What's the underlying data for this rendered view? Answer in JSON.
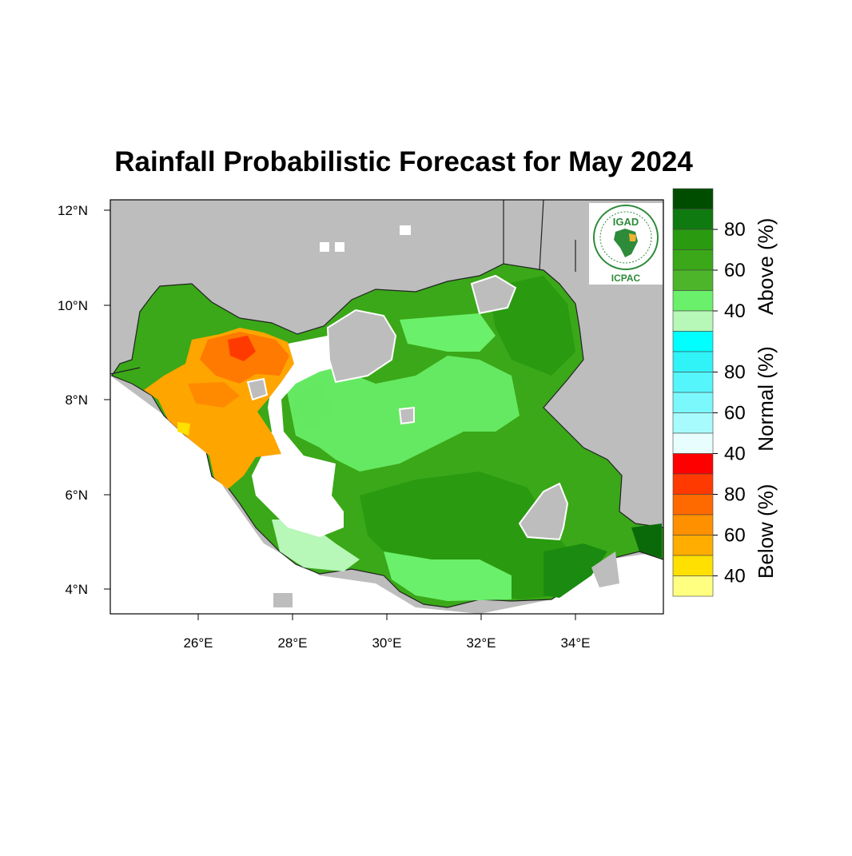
{
  "title": "Rainfall Probabilistic Forecast for May 2024",
  "axes": {
    "lat_ticks": [
      "12°N",
      "10°N",
      "8°N",
      "6°N",
      "4°N"
    ],
    "lon_ticks": [
      "26°E",
      "28°E",
      "30°E",
      "32°E",
      "34°E"
    ]
  },
  "logo": {
    "top_text": "IGAD",
    "bottom_text": "ICPAC"
  },
  "colorbar": {
    "groups": [
      {
        "label": "Above (%)",
        "ticks": [
          "80",
          "60",
          "40"
        ],
        "colors": [
          "#004d00",
          "#0f7a0f",
          "#2a9a10",
          "#3aa818",
          "#4db52a",
          "#6af06a",
          "#b7f7b7"
        ]
      },
      {
        "label": "Normal (%)",
        "ticks": [
          "80",
          "60",
          "40"
        ],
        "colors": [
          "#00ffff",
          "#30f3f8",
          "#55f6fb",
          "#7bf8fc",
          "#a8fbfd",
          "#e8fdfd"
        ]
      },
      {
        "label": "Below (%)",
        "ticks": [
          "80",
          "60",
          "40"
        ],
        "colors": [
          "#ff0000",
          "#ff3a00",
          "#ff6a00",
          "#ff9000",
          "#ffad00",
          "#ffe000",
          "#ffff80"
        ]
      }
    ]
  },
  "colors": {
    "no_data": "#bdbdbd",
    "above": "#3aa818",
    "normal": "#ffffff",
    "below": "#ffa500"
  }
}
